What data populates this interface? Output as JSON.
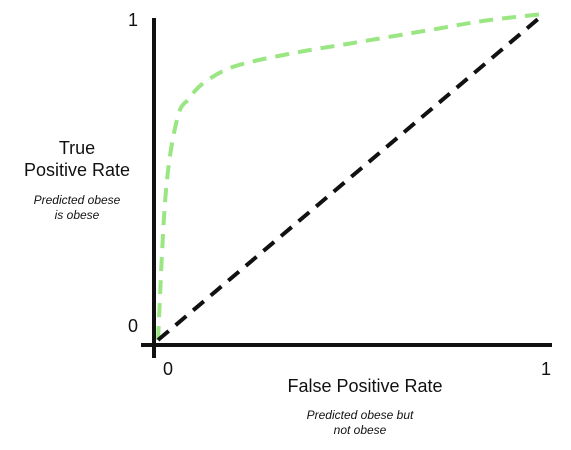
{
  "chart_data": {
    "type": "line",
    "title": "",
    "xlabel": "False Positive Rate",
    "ylabel": "True\nPositive Rate",
    "x_note": "Predicted obese but\nnot obese",
    "y_note": "Predicted obese\nis obese",
    "xlim": [
      0,
      1
    ],
    "ylim": [
      0,
      1
    ],
    "x_ticks": [
      "0",
      "1"
    ],
    "y_ticks": [
      "0",
      "1"
    ],
    "grid": false,
    "legend": "none",
    "series": [
      {
        "color": "#99e682",
        "style": "dashed",
        "x": [
          0,
          0.02,
          0.05,
          0.08,
          0.12,
          0.2,
          0.35,
          0.5,
          0.7,
          0.85,
          1.0
        ],
        "y": [
          0,
          0.45,
          0.68,
          0.74,
          0.79,
          0.84,
          0.88,
          0.91,
          0.95,
          0.98,
          1.0
        ]
      },
      {
        "color": "#111111",
        "style": "dashed",
        "x": [
          0,
          1
        ],
        "y": [
          0,
          1
        ]
      }
    ]
  }
}
